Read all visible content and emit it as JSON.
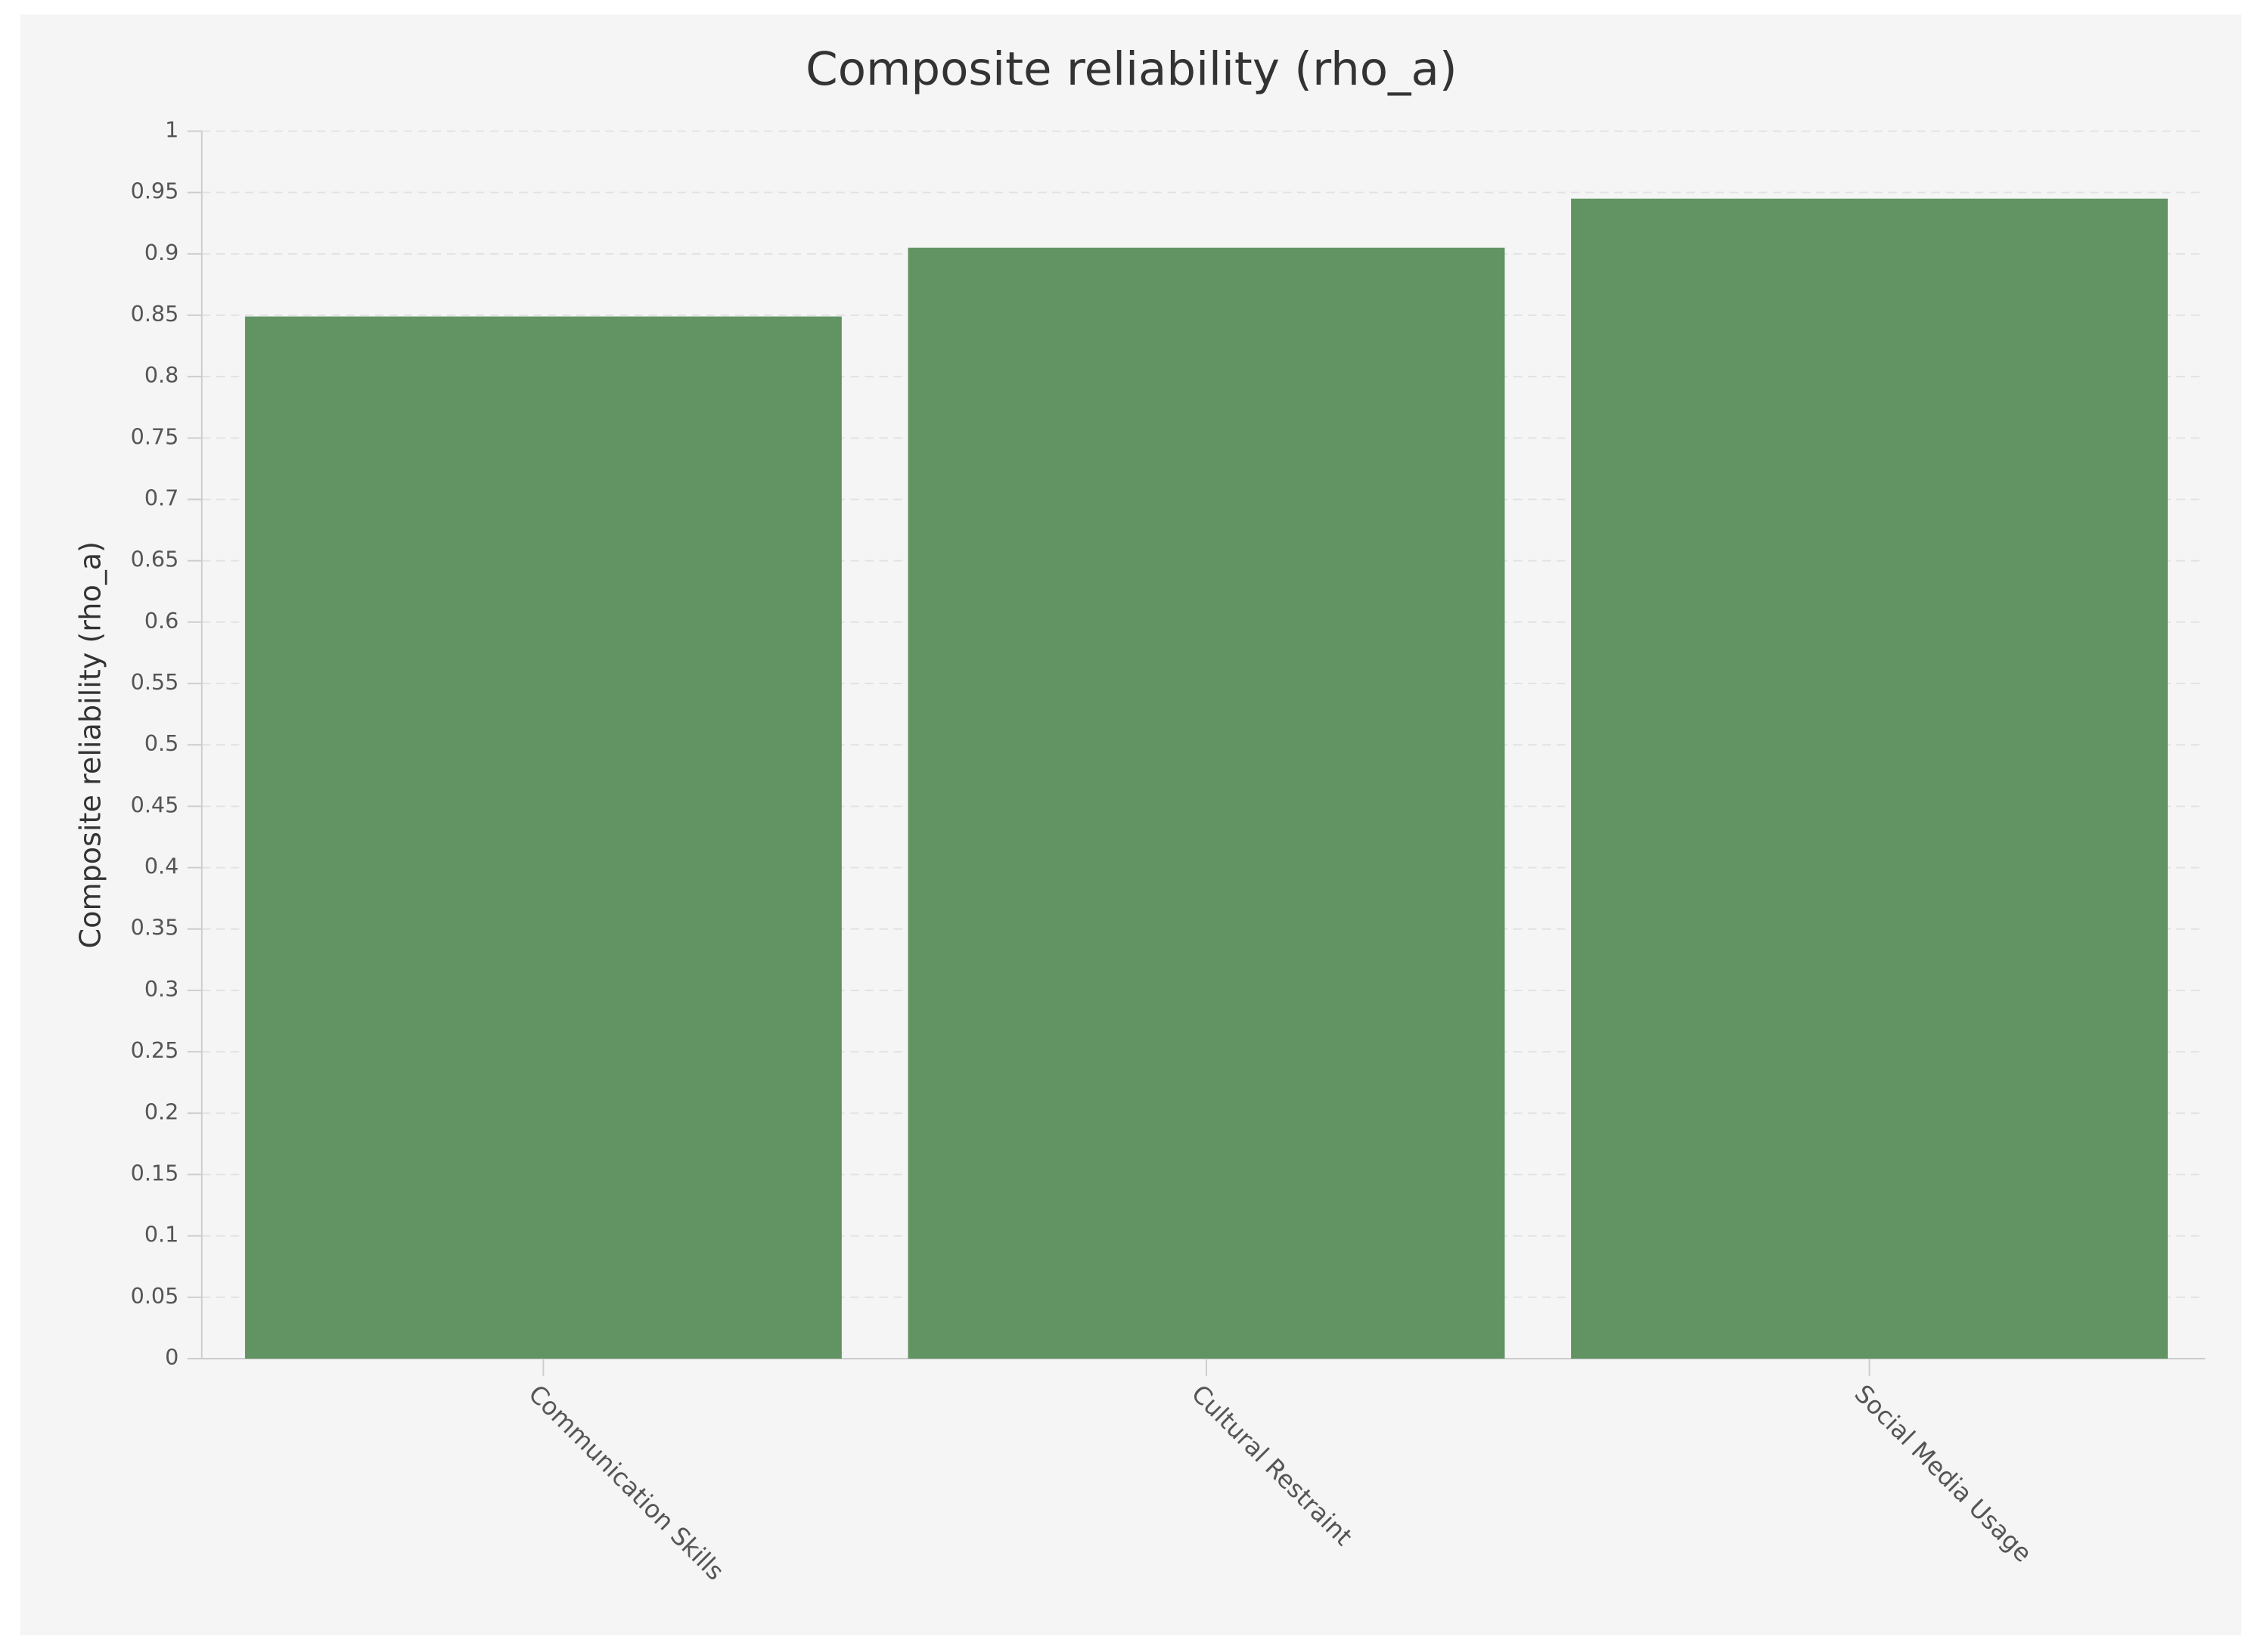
{
  "chart_data": {
    "type": "bar",
    "title": "Composite reliability (rho_a)",
    "y_label": "Composite reliability (rho_a)",
    "categories": [
      "Communication Skills",
      "Cultural Restraint",
      "Social Media Usage"
    ],
    "values": [
      0.849,
      0.905,
      0.945
    ],
    "color": "#629463",
    "ylim": [
      0,
      1
    ],
    "yticks": [
      0,
      0.05,
      0.1,
      0.15,
      0.2,
      0.25,
      0.3,
      0.35,
      0.4,
      0.45,
      0.5,
      0.55,
      0.6,
      0.65,
      0.7,
      0.75,
      0.8,
      0.85,
      0.9,
      0.95,
      1
    ],
    "grid": true
  }
}
